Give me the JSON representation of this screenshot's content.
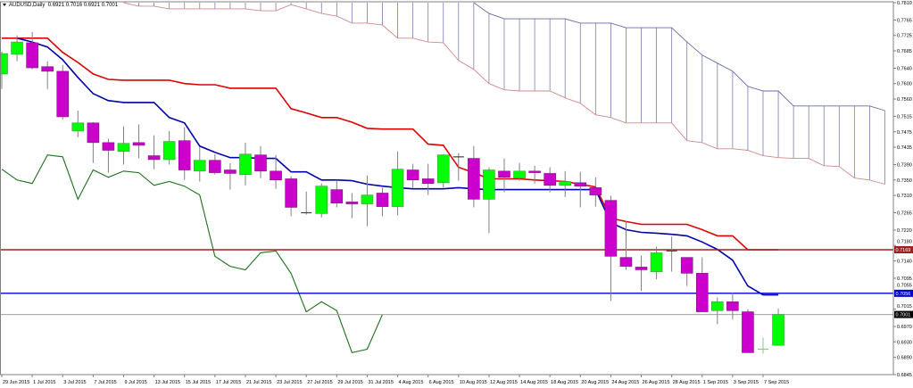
{
  "header": {
    "symbol": "AUDUSD,Daily",
    "ohlc": "0.6921 0.7016 0.6921 0.7001"
  },
  "colors": {
    "bull_body": "#00ff00",
    "bull_border": "#3c9a3c",
    "bear_body": "#cc00cc",
    "bear_border": "#7a1a7a",
    "wick": "#808080",
    "tenkan": "#0000aa",
    "kijun": "#dd0000",
    "chikou": "#1f6f1f",
    "span_a": "#d08a8a",
    "span_b": "#6a6aa8",
    "cloud_hatch": "#7c7cb4",
    "level_red": "#a02020",
    "level_blue": "#0000cc",
    "level_current": "#a0a0a0"
  },
  "chart_data": {
    "type": "candlestick",
    "title": "AUDUSD,Daily",
    "ylim": [
      0.6845,
      0.781
    ],
    "grid": false,
    "y_ticks": [
      "0.7810",
      "0.7765",
      "0.7725",
      "0.7685",
      "0.7640",
      "0.7600",
      "0.7560",
      "0.7515",
      "0.7475",
      "0.7435",
      "0.7390",
      "0.7350",
      "0.7310",
      "0.7265",
      "0.7220",
      "0.7180",
      "0.7140",
      "0.7095",
      "0.7055",
      "0.7015",
      "0.6970",
      "0.6930",
      "0.6890",
      "0.6845"
    ],
    "x_ticks": [
      "29 Jun 2015",
      "1 Jul 2015",
      "3 Jul 2015",
      "7 Jul 2015",
      "9 Jul 2015",
      "13 Jul 2015",
      "15 Jul 2015",
      "17 Jul 2015",
      "21 Jul 2015",
      "23 Jul 2015",
      "27 Jul 2015",
      "29 Jul 2015",
      "31 Jul 2015",
      "4 Aug 2015",
      "6 Aug 2015",
      "10 Aug 2015",
      "12 Aug 2015",
      "14 Aug 2015",
      "18 Aug 2015",
      "20 Aug 2015",
      "24 Aug 2015",
      "26 Aug 2015",
      "28 Aug 2015",
      "1 Sep 2015",
      "3 Sep 2015",
      "7 Sep 2015"
    ],
    "x_tick_every_bars": 2,
    "ohlc": [
      [
        0.7625,
        0.7683,
        0.7586,
        0.7678
      ],
      [
        0.7676,
        0.7725,
        0.7658,
        0.7708
      ],
      [
        0.7706,
        0.7734,
        0.7637,
        0.7641
      ],
      [
        0.7644,
        0.7658,
        0.7586,
        0.7632
      ],
      [
        0.7632,
        0.7648,
        0.7507,
        0.7514
      ],
      [
        0.7477,
        0.753,
        0.7461,
        0.7498
      ],
      [
        0.7498,
        0.75,
        0.7394,
        0.7447
      ],
      [
        0.7447,
        0.7457,
        0.7369,
        0.7427
      ],
      [
        0.7424,
        0.7489,
        0.739,
        0.7445
      ],
      [
        0.7447,
        0.7494,
        0.7406,
        0.744
      ],
      [
        0.7413,
        0.7466,
        0.7378,
        0.7403
      ],
      [
        0.7403,
        0.7477,
        0.739,
        0.745
      ],
      [
        0.7452,
        0.7487,
        0.735,
        0.7376
      ],
      [
        0.7373,
        0.7436,
        0.7346,
        0.7401
      ],
      [
        0.7401,
        0.7417,
        0.7364,
        0.7369
      ],
      [
        0.7376,
        0.7394,
        0.7325,
        0.7367
      ],
      [
        0.7364,
        0.7447,
        0.7336,
        0.7417
      ],
      [
        0.7415,
        0.7438,
        0.7355,
        0.7373
      ],
      [
        0.7373,
        0.7415,
        0.7327,
        0.735
      ],
      [
        0.7353,
        0.736,
        0.7256,
        0.7279
      ],
      [
        0.7265,
        0.732,
        0.726,
        0.7265
      ],
      [
        0.7263,
        0.7341,
        0.7253,
        0.7334
      ],
      [
        0.7325,
        0.735,
        0.7279,
        0.729
      ],
      [
        0.7293,
        0.7316,
        0.7251,
        0.7288
      ],
      [
        0.7288,
        0.7362,
        0.723,
        0.7311
      ],
      [
        0.7316,
        0.733,
        0.7256,
        0.7281
      ],
      [
        0.7281,
        0.7424,
        0.7258,
        0.7378
      ],
      [
        0.7376,
        0.7392,
        0.733,
        0.735
      ],
      [
        0.7353,
        0.7392,
        0.7311,
        0.7341
      ],
      [
        0.7343,
        0.7417,
        0.733,
        0.7415
      ],
      [
        0.741,
        0.742,
        0.7348,
        0.741
      ],
      [
        0.7406,
        0.7438,
        0.7279,
        0.73
      ],
      [
        0.73,
        0.7383,
        0.7212,
        0.7376
      ],
      [
        0.7373,
        0.7406,
        0.7318,
        0.7357
      ],
      [
        0.7355,
        0.7394,
        0.7348,
        0.7373
      ],
      [
        0.7373,
        0.7387,
        0.7341,
        0.7369
      ],
      [
        0.7367,
        0.7383,
        0.7318,
        0.7336
      ],
      [
        0.7336,
        0.7373,
        0.7306,
        0.7346
      ],
      [
        0.7343,
        0.7371,
        0.7279,
        0.7334
      ],
      [
        0.733,
        0.7357,
        0.7281,
        0.7311
      ],
      [
        0.7297,
        0.7309,
        0.7036,
        0.7152
      ],
      [
        0.7149,
        0.7244,
        0.7117,
        0.7126
      ],
      [
        0.7124,
        0.7154,
        0.7062,
        0.7117
      ],
      [
        0.7112,
        0.7177,
        0.7092,
        0.7161
      ],
      [
        0.7166,
        0.7203,
        0.7112,
        0.7166
      ],
      [
        0.7149,
        0.7149,
        0.7075,
        0.7108
      ],
      [
        0.7108,
        0.7149,
        0.7008,
        0.7008
      ],
      [
        0.7011,
        0.7045,
        0.6976,
        0.7034
      ],
      [
        0.7034,
        0.7057,
        0.6988,
        0.7011
      ],
      [
        0.7008,
        0.7015,
        0.6902,
        0.6902
      ],
      [
        0.6911,
        0.6941,
        0.69,
        0.6911
      ],
      [
        0.6921,
        0.7016,
        0.6921,
        0.7001
      ]
    ],
    "tenkan": [
      null,
      0.7718,
      0.7708,
      0.7695,
      0.7662,
      0.7616,
      0.7574,
      0.7556,
      0.7551,
      0.7551,
      0.7551,
      0.7512,
      0.7498,
      0.7438,
      0.7422,
      0.7408,
      0.7408,
      0.7406,
      0.7406,
      0.7371,
      0.7371,
      0.735,
      0.735,
      0.7348,
      0.7339,
      0.7334,
      0.733,
      0.7327,
      0.7327,
      0.7327,
      0.733,
      0.7327,
      0.7325,
      0.7325,
      0.7325,
      0.7325,
      0.7325,
      0.7325,
      0.7325,
      0.7325,
      0.7239,
      0.7221,
      0.7214,
      0.7212,
      0.7209,
      0.7205,
      0.7189,
      0.717,
      0.7142,
      0.7075,
      0.7052,
      0.7052
    ],
    "kijun": [
      0.7718,
      0.7718,
      0.7718,
      0.7718,
      0.7681,
      0.7655,
      0.7625,
      0.7611,
      0.7609,
      0.7609,
      0.7609,
      0.7609,
      0.76,
      0.7597,
      0.7597,
      0.7588,
      0.7588,
      0.7588,
      0.7588,
      0.7535,
      0.7524,
      0.7512,
      0.7512,
      0.75,
      0.7484,
      0.7482,
      0.7482,
      0.7482,
      0.7443,
      0.744,
      0.7383,
      0.7369,
      0.7353,
      0.7353,
      0.7353,
      0.735,
      0.7348,
      0.7346,
      0.7339,
      0.7332,
      0.7251,
      0.7242,
      0.7235,
      0.7235,
      0.7235,
      0.7235,
      0.7221,
      0.7205,
      0.7205,
      0.7169,
      0.7169,
      0.7169
    ],
    "chikou_shift_bars": 26,
    "senkou_span_a": [
      null,
      null,
      null,
      null,
      null,
      null,
      null,
      null,
      0.7817,
      0.7801,
      0.7801,
      0.7794,
      0.7794,
      0.7794,
      0.7794,
      0.7794,
      0.7794,
      0.7789,
      0.7789,
      0.7805,
      0.7794,
      0.7782,
      0.7775,
      0.7757,
      0.7757,
      0.7752,
      0.7718,
      0.7718,
      0.7708,
      0.7706,
      0.766,
      0.7637,
      0.76,
      0.7584,
      0.7581,
      0.7581,
      0.7581,
      0.7563,
      0.7549,
      0.7519,
      0.7512,
      0.7498,
      0.7498,
      0.7498,
      0.7498,
      0.7452,
      0.7447,
      0.7431,
      0.7431,
      0.7427,
      0.7413,
      0.7408,
      0.7406,
      0.7406,
      0.7387,
      0.7385,
      0.7355,
      0.735,
      0.7339
    ],
    "senkou_span_b": [
      null,
      null,
      null,
      null,
      null,
      null,
      null,
      null,
      null,
      null,
      null,
      null,
      null,
      null,
      null,
      null,
      null,
      null,
      null,
      null,
      null,
      null,
      null,
      null,
      null,
      null,
      null,
      null,
      null,
      null,
      null,
      0.7812,
      0.7782,
      0.7768,
      0.7768,
      0.7768,
      0.7768,
      0.7768,
      0.7757,
      0.7757,
      0.7757,
      0.7745,
      0.7745,
      0.7745,
      0.7745,
      0.7708,
      0.7674,
      0.7653,
      0.7632,
      0.7593,
      0.7581,
      0.7581,
      0.7542,
      0.7542,
      0.7542,
      0.7542,
      0.7542,
      0.7542,
      0.753
    ],
    "levels": [
      {
        "value": 0.7169,
        "label": "0.7169",
        "color_key": "level_red"
      },
      {
        "value": 0.7056,
        "label": "0.7056",
        "color_key": "level_blue"
      },
      {
        "value": 0.7001,
        "label": "0.7001",
        "color_key": "level_current"
      }
    ]
  }
}
